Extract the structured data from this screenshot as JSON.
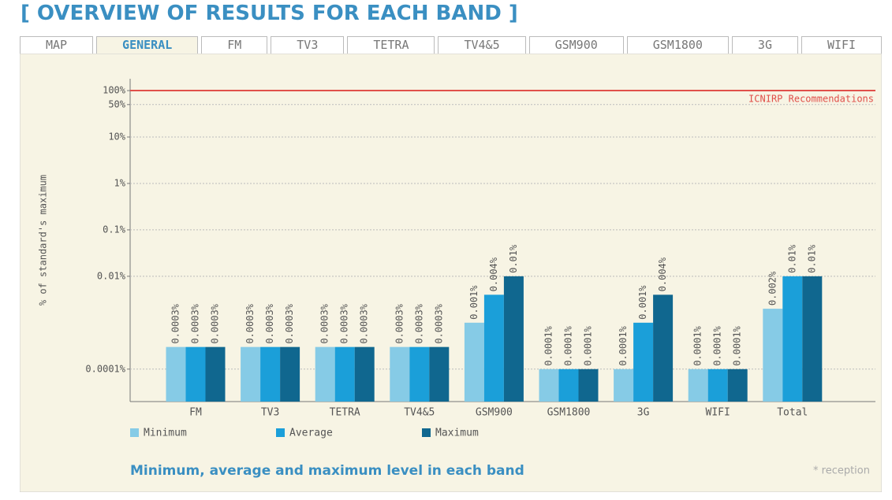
{
  "header": {
    "title": "[ OVERVIEW OF RESULTS FOR EACH BAND ]"
  },
  "tabs": {
    "items": [
      "MAP",
      "GENERAL",
      "FM",
      "TV3",
      "TETRA",
      "TV4&5",
      "GSM900",
      "GSM1800",
      "3G",
      "WIFI"
    ],
    "active": 1
  },
  "chart_data": {
    "type": "bar",
    "y_label": "% of standard's maximum",
    "log_scale": true,
    "grid": true,
    "legend": "bottom-left",
    "categories": [
      "FM",
      "TV3",
      "TETRA",
      "TV4&5",
      "GSM900",
      "GSM1800",
      "3G",
      "WIFI",
      "Total"
    ],
    "series": [
      {
        "name": "Minimum",
        "color": "#86cbe6",
        "values": [
          0.0003,
          0.0003,
          0.0003,
          0.0003,
          0.001,
          0.0001,
          0.0001,
          0.0001,
          0.002
        ],
        "value_labels": [
          "0.0003%",
          "0.0003%",
          "0.0003%",
          "0.0003%",
          "0.001%",
          "0.0001%",
          "0.0001%",
          "0.0001%",
          "0.002%"
        ]
      },
      {
        "name": "Average",
        "color": "#1b9fd9",
        "values": [
          0.0003,
          0.0003,
          0.0003,
          0.0003,
          0.004,
          0.0001,
          0.001,
          0.0001,
          0.01
        ],
        "value_labels": [
          "0.0003%",
          "0.0003%",
          "0.0003%",
          "0.0003%",
          "0.004%",
          "0.0001%",
          "0.001%",
          "0.0001%",
          "0.01%"
        ]
      },
      {
        "name": "Maximum",
        "color": "#10678f",
        "values": [
          0.0003,
          0.0003,
          0.0003,
          0.0003,
          0.01,
          0.0001,
          0.004,
          0.0001,
          0.01
        ],
        "value_labels": [
          "0.0003%",
          "0.0003%",
          "0.0003%",
          "0.0003%",
          "0.01%",
          "0.0001%",
          "0.004%",
          "0.0001%",
          "0.01%"
        ]
      }
    ],
    "ylim": [
      2e-05,
      180
    ],
    "yticks": [
      {
        "value": 100,
        "label": "100%"
      },
      {
        "value": 50,
        "label": "50%"
      },
      {
        "value": 10,
        "label": "10%"
      },
      {
        "value": 1,
        "label": "1%"
      },
      {
        "value": 0.1,
        "label": "0.1%"
      },
      {
        "value": 0.01,
        "label": "0.01%"
      },
      {
        "value": 0.0001,
        "label": "0.0001%"
      }
    ],
    "reference_line": {
      "value": 100,
      "label": "ICNIRP Recommendations",
      "color": "#e0504a"
    },
    "caption": "Minimum, average and maximum level in each band",
    "note": "* reception"
  }
}
